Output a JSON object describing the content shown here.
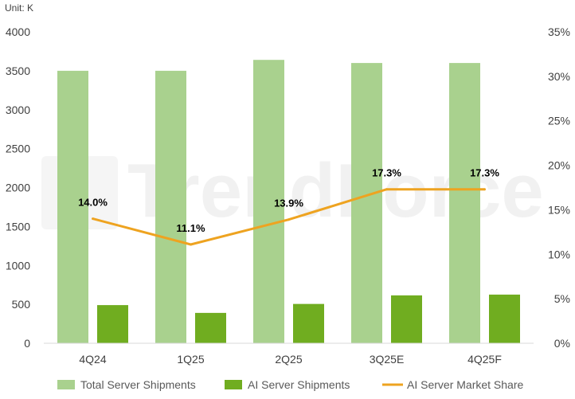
{
  "chart_data": {
    "type": "bar",
    "unit_label": "Unit: K",
    "watermark": "TrendForce",
    "categories": [
      "4Q24",
      "1Q25",
      "2Q25",
      "3Q25E",
      "4Q25F"
    ],
    "series": [
      {
        "name": "Total Server Shipments",
        "kind": "bar",
        "axis": "left",
        "color": "#a9d18e",
        "values": [
          3500,
          3500,
          3640,
          3600,
          3600
        ]
      },
      {
        "name": "AI Server Shipments",
        "kind": "bar",
        "axis": "left",
        "color": "#70ad20",
        "values": [
          490,
          390,
          505,
          615,
          625
        ]
      },
      {
        "name": "AI Server Market Share",
        "kind": "line",
        "axis": "right",
        "color": "#eea320",
        "values": [
          14.0,
          11.1,
          13.9,
          17.3,
          17.3
        ],
        "labels": [
          "14.0%",
          "11.1%",
          "13.9%",
          "17.3%",
          "17.3%"
        ]
      }
    ],
    "y_left": {
      "min": 0,
      "max": 4000,
      "ticks": [
        "0",
        "500",
        "1000",
        "1500",
        "2000",
        "2500",
        "3000",
        "3500",
        "4000"
      ]
    },
    "y_right": {
      "min": 0,
      "max": 35,
      "ticks": [
        "0%",
        "5%",
        "10%",
        "15%",
        "20%",
        "25%",
        "30%",
        "35%"
      ]
    },
    "grid": false,
    "legend_position": "bottom"
  }
}
